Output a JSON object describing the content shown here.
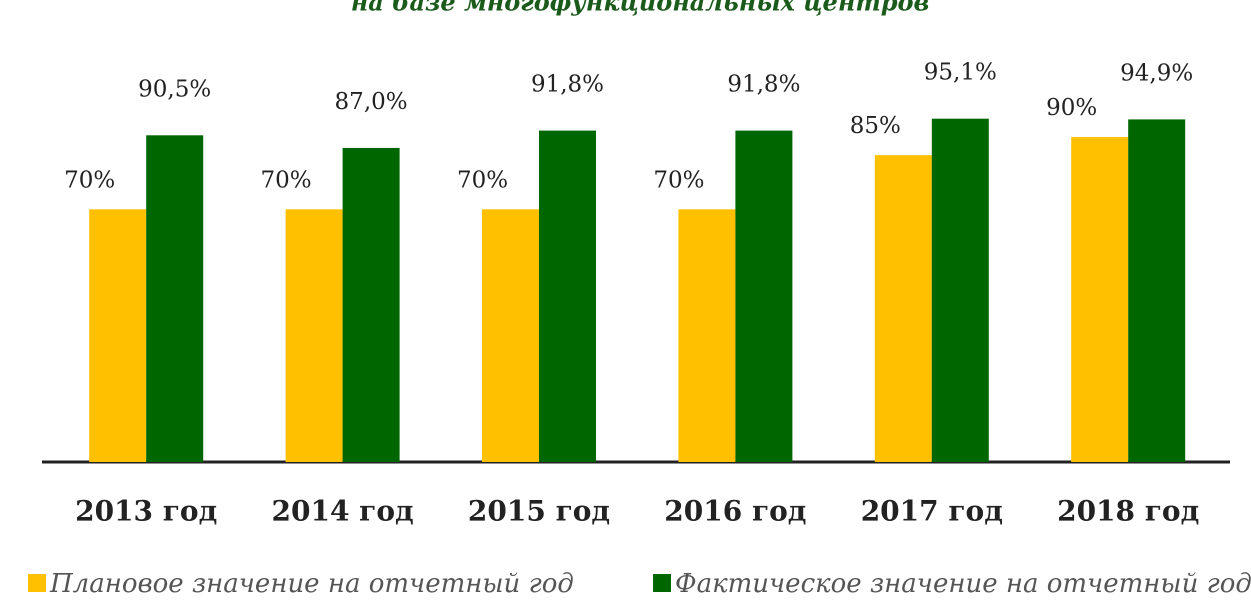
{
  "chart_data": {
    "type": "bar",
    "title": "на базе многофункциональных центров",
    "categories": [
      "2013 год",
      "2014 год",
      "2015 год",
      "2016 год",
      "2017 год",
      "2018 год"
    ],
    "series": [
      {
        "name": "Плановое значение на отчетный год",
        "color": "#ffc000",
        "values": [
          70,
          70,
          70,
          70,
          85,
          90
        ],
        "value_labels": [
          "70%",
          "70%",
          "70%",
          "70%",
          "85%",
          "90%"
        ]
      },
      {
        "name": "Фактическое значение на отчетный год",
        "color": "#006600",
        "values": [
          90.5,
          87.0,
          91.8,
          91.8,
          95.1,
          94.9
        ],
        "value_labels": [
          "90,5%",
          "87,0%",
          "91,8%",
          "91,8%",
          "95,1%",
          "94,9%"
        ]
      }
    ],
    "ylim": [
      0,
      100
    ]
  }
}
